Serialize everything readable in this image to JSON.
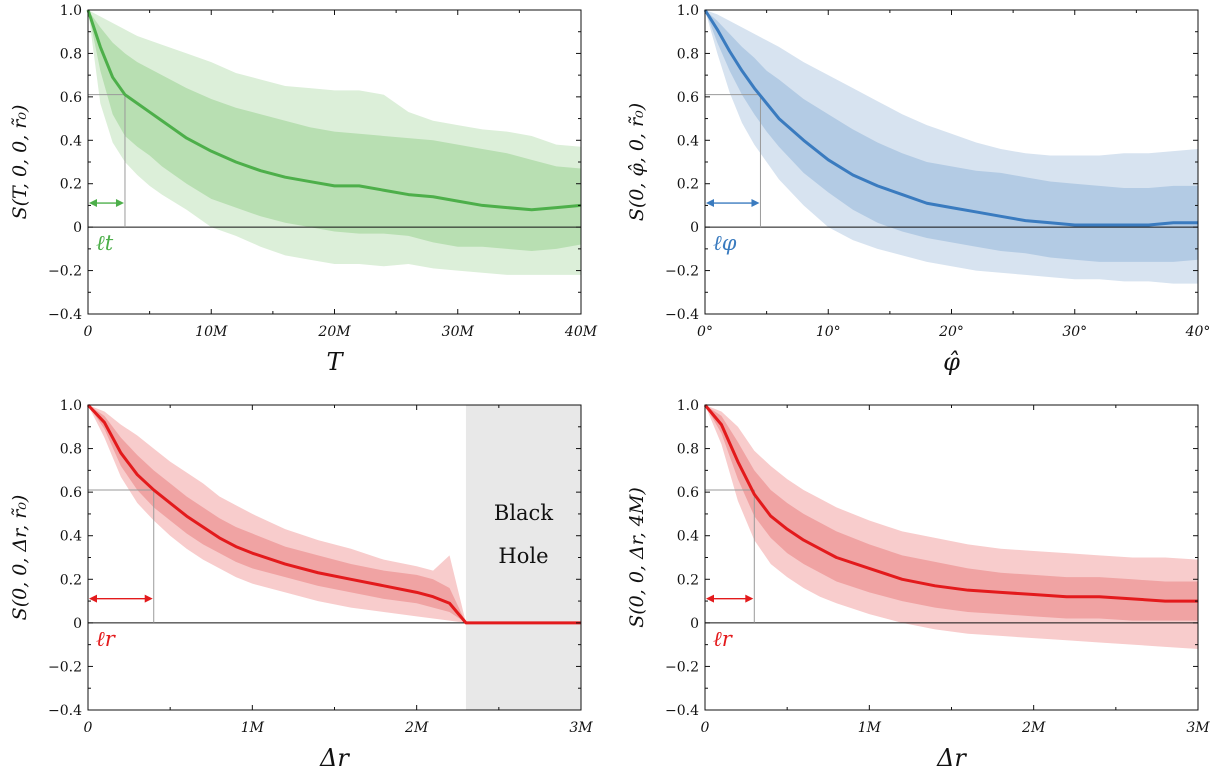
{
  "chart_data": [
    {
      "type": "area",
      "ylabel": "S(T, 0, 0, r̃₀)",
      "xlabel": "T",
      "xlim": [
        0,
        40
      ],
      "ylim": [
        -0.4,
        1.0
      ],
      "xticks": [
        0,
        10,
        20,
        30,
        40
      ],
      "xtick_labels": [
        "0",
        "10M",
        "20M",
        "30M",
        "40M"
      ],
      "yticks": [
        -0.4,
        -0.2,
        0,
        0.2,
        0.4,
        0.6,
        0.8,
        1.0
      ],
      "ytick_labels": [
        "−0.4",
        "−0.2",
        "0",
        "0.2",
        "0.4",
        "0.6",
        "0.8",
        "1.0"
      ],
      "color": "#4daf4a",
      "band_outer_color": "#dcefd9",
      "band_inner_color": "#b8dfb2",
      "annotation": "ℓt",
      "length_scale": 3.0,
      "length_value": 0.61,
      "x": [
        0,
        1,
        2,
        3,
        4,
        5,
        6,
        8,
        10,
        12,
        14,
        16,
        18,
        20,
        22,
        24,
        26,
        28,
        30,
        32,
        34,
        36,
        38,
        40
      ],
      "mean": [
        1.0,
        0.83,
        0.69,
        0.61,
        0.57,
        0.53,
        0.49,
        0.41,
        0.35,
        0.3,
        0.26,
        0.23,
        0.21,
        0.19,
        0.19,
        0.17,
        0.15,
        0.14,
        0.12,
        0.1,
        0.09,
        0.08,
        0.09,
        0.1
      ],
      "inner_upper": [
        1.0,
        0.92,
        0.85,
        0.8,
        0.76,
        0.73,
        0.7,
        0.64,
        0.59,
        0.55,
        0.52,
        0.49,
        0.46,
        0.44,
        0.43,
        0.42,
        0.41,
        0.4,
        0.38,
        0.36,
        0.34,
        0.31,
        0.28,
        0.27
      ],
      "inner_lower": [
        1.0,
        0.72,
        0.52,
        0.42,
        0.37,
        0.33,
        0.28,
        0.2,
        0.13,
        0.09,
        0.05,
        0.02,
        0.0,
        -0.02,
        -0.03,
        -0.03,
        -0.04,
        -0.07,
        -0.09,
        -0.09,
        -0.1,
        -0.11,
        -0.1,
        -0.08
      ],
      "outer_upper": [
        1.0,
        0.97,
        0.94,
        0.91,
        0.88,
        0.86,
        0.84,
        0.8,
        0.76,
        0.71,
        0.68,
        0.65,
        0.64,
        0.63,
        0.63,
        0.61,
        0.53,
        0.49,
        0.47,
        0.45,
        0.44,
        0.42,
        0.38,
        0.37
      ],
      "outer_lower": [
        1.0,
        0.57,
        0.39,
        0.3,
        0.24,
        0.19,
        0.15,
        0.08,
        0.0,
        -0.04,
        -0.09,
        -0.13,
        -0.15,
        -0.17,
        -0.17,
        -0.18,
        -0.17,
        -0.19,
        -0.2,
        -0.21,
        -0.22,
        -0.22,
        -0.22,
        -0.22
      ]
    },
    {
      "type": "area",
      "ylabel": "S(0, φ̂, 0, r̃₀)",
      "xlabel": "φ̂",
      "xlim": [
        0,
        40
      ],
      "ylim": [
        -0.4,
        1.0
      ],
      "xticks": [
        0,
        10,
        20,
        30,
        40
      ],
      "xtick_labels": [
        "0°",
        "10°",
        "20°",
        "30°",
        "40°"
      ],
      "yticks": [
        -0.4,
        -0.2,
        0,
        0.2,
        0.4,
        0.6,
        0.8,
        1.0
      ],
      "ytick_labels": [
        "−0.4",
        "−0.2",
        "0",
        "0.2",
        "0.4",
        "0.6",
        "0.8",
        "1.0"
      ],
      "color": "#3a7bbf",
      "band_outer_color": "#d7e3f0",
      "band_inner_color": "#b3cbe4",
      "annotation": "ℓφ",
      "length_scale": 4.5,
      "length_value": 0.61,
      "x": [
        0,
        1,
        2,
        3,
        4,
        5,
        6,
        8,
        10,
        12,
        14,
        16,
        18,
        20,
        22,
        24,
        26,
        28,
        30,
        32,
        34,
        36,
        38,
        40
      ],
      "mean": [
        1.0,
        0.91,
        0.81,
        0.72,
        0.64,
        0.57,
        0.5,
        0.4,
        0.31,
        0.24,
        0.19,
        0.15,
        0.11,
        0.09,
        0.07,
        0.05,
        0.03,
        0.02,
        0.01,
        0.01,
        0.01,
        0.01,
        0.02,
        0.02
      ],
      "inner_upper": [
        1.0,
        0.95,
        0.89,
        0.83,
        0.78,
        0.72,
        0.68,
        0.59,
        0.52,
        0.45,
        0.39,
        0.34,
        0.3,
        0.28,
        0.26,
        0.25,
        0.23,
        0.21,
        0.2,
        0.19,
        0.18,
        0.18,
        0.19,
        0.19
      ],
      "inner_lower": [
        1.0,
        0.85,
        0.72,
        0.61,
        0.52,
        0.44,
        0.37,
        0.25,
        0.16,
        0.08,
        0.02,
        -0.02,
        -0.05,
        -0.07,
        -0.09,
        -0.11,
        -0.12,
        -0.14,
        -0.15,
        -0.16,
        -0.16,
        -0.16,
        -0.16,
        -0.15
      ],
      "outer_upper": [
        1.0,
        0.98,
        0.95,
        0.92,
        0.89,
        0.86,
        0.83,
        0.76,
        0.7,
        0.64,
        0.58,
        0.52,
        0.47,
        0.43,
        0.39,
        0.36,
        0.34,
        0.33,
        0.33,
        0.33,
        0.34,
        0.34,
        0.35,
        0.36
      ],
      "outer_lower": [
        1.0,
        0.8,
        0.62,
        0.48,
        0.38,
        0.3,
        0.22,
        0.1,
        0.0,
        -0.06,
        -0.1,
        -0.13,
        -0.16,
        -0.18,
        -0.2,
        -0.21,
        -0.22,
        -0.23,
        -0.24,
        -0.24,
        -0.25,
        -0.25,
        -0.26,
        -0.26
      ]
    },
    {
      "type": "area",
      "ylabel": "S(0, 0, Δr, r̃₀)",
      "xlabel": "Δr",
      "xlim": [
        0,
        3
      ],
      "ylim": [
        -0.4,
        1.0
      ],
      "xticks": [
        0,
        1,
        2,
        3
      ],
      "xtick_labels": [
        "0",
        "1M",
        "2M",
        "3M"
      ],
      "yticks": [
        -0.4,
        -0.2,
        0,
        0.2,
        0.4,
        0.6,
        0.8,
        1.0
      ],
      "ytick_labels": [
        "−0.4",
        "−0.2",
        "0",
        "0.2",
        "0.4",
        "0.6",
        "0.8",
        "1.0"
      ],
      "color": "#e31a1c",
      "band_outer_color": "#f8cccc",
      "band_inner_color": "#f0a3a3",
      "annotation": "ℓr",
      "length_scale": 0.4,
      "length_value": 0.61,
      "black_hole": {
        "x_start": 2.3,
        "x_end": 3.0,
        "label_line1": "Black",
        "label_line2": "Hole",
        "fill": "#e8e8e8"
      },
      "x": [
        0,
        0.1,
        0.2,
        0.3,
        0.4,
        0.5,
        0.6,
        0.7,
        0.8,
        0.9,
        1.0,
        1.2,
        1.4,
        1.6,
        1.8,
        2.0,
        2.1,
        2.2,
        2.3,
        2.4,
        2.6,
        2.8,
        3.0
      ],
      "mean": [
        1.0,
        0.92,
        0.78,
        0.68,
        0.61,
        0.55,
        0.49,
        0.44,
        0.39,
        0.35,
        0.32,
        0.27,
        0.23,
        0.2,
        0.17,
        0.14,
        0.12,
        0.09,
        0.0,
        0.0,
        0.0,
        0.0,
        0.0
      ],
      "inner_upper": [
        1.0,
        0.95,
        0.85,
        0.77,
        0.7,
        0.64,
        0.58,
        0.53,
        0.48,
        0.44,
        0.41,
        0.35,
        0.31,
        0.27,
        0.24,
        0.22,
        0.2,
        0.16,
        0.0,
        0.0,
        0.0,
        0.0,
        0.0
      ],
      "inner_lower": [
        1.0,
        0.89,
        0.72,
        0.61,
        0.53,
        0.47,
        0.41,
        0.36,
        0.32,
        0.28,
        0.25,
        0.21,
        0.17,
        0.14,
        0.11,
        0.09,
        0.07,
        0.05,
        0.0,
        0.0,
        0.0,
        0.0,
        0.0
      ],
      "outer_upper": [
        1.0,
        0.97,
        0.91,
        0.86,
        0.8,
        0.74,
        0.69,
        0.64,
        0.58,
        0.54,
        0.5,
        0.43,
        0.38,
        0.34,
        0.29,
        0.26,
        0.24,
        0.31,
        0.0,
        0.0,
        0.0,
        0.0,
        0.0
      ],
      "outer_lower": [
        1.0,
        0.85,
        0.67,
        0.55,
        0.47,
        0.4,
        0.34,
        0.29,
        0.25,
        0.21,
        0.18,
        0.14,
        0.1,
        0.07,
        0.05,
        0.03,
        0.02,
        0.01,
        0.0,
        0.0,
        0.0,
        0.0,
        0.0
      ]
    },
    {
      "type": "area",
      "ylabel": "S(0, 0, Δr, 4M)",
      "xlabel": "Δr",
      "xlim": [
        0,
        3
      ],
      "ylim": [
        -0.4,
        1.0
      ],
      "xticks": [
        0,
        1,
        2,
        3
      ],
      "xtick_labels": [
        "0",
        "1M",
        "2M",
        "3M"
      ],
      "yticks": [
        -0.4,
        -0.2,
        0,
        0.2,
        0.4,
        0.6,
        0.8,
        1.0
      ],
      "ytick_labels": [
        "−0.4",
        "−0.2",
        "0",
        "0.2",
        "0.4",
        "0.6",
        "0.8",
        "1.0"
      ],
      "color": "#e31a1c",
      "band_outer_color": "#f8cccc",
      "band_inner_color": "#f0a3a3",
      "annotation": "ℓr",
      "length_scale": 0.3,
      "length_value": 0.61,
      "x": [
        0,
        0.1,
        0.2,
        0.3,
        0.4,
        0.5,
        0.6,
        0.7,
        0.8,
        1.0,
        1.2,
        1.4,
        1.6,
        1.8,
        2.0,
        2.2,
        2.4,
        2.6,
        2.8,
        3.0
      ],
      "mean": [
        1.0,
        0.91,
        0.74,
        0.59,
        0.49,
        0.43,
        0.38,
        0.34,
        0.3,
        0.25,
        0.2,
        0.17,
        0.15,
        0.14,
        0.13,
        0.12,
        0.12,
        0.11,
        0.1,
        0.1
      ],
      "inner_upper": [
        1.0,
        0.95,
        0.83,
        0.7,
        0.61,
        0.55,
        0.5,
        0.46,
        0.42,
        0.36,
        0.31,
        0.28,
        0.25,
        0.23,
        0.22,
        0.21,
        0.21,
        0.2,
        0.19,
        0.19
      ],
      "inner_lower": [
        1.0,
        0.87,
        0.66,
        0.49,
        0.39,
        0.32,
        0.27,
        0.23,
        0.19,
        0.14,
        0.1,
        0.07,
        0.05,
        0.04,
        0.03,
        0.02,
        0.02,
        0.01,
        0.01,
        0.01
      ],
      "outer_upper": [
        1.0,
        0.97,
        0.9,
        0.79,
        0.72,
        0.66,
        0.61,
        0.57,
        0.53,
        0.47,
        0.42,
        0.39,
        0.36,
        0.34,
        0.33,
        0.32,
        0.31,
        0.3,
        0.3,
        0.29
      ],
      "outer_lower": [
        1.0,
        0.82,
        0.56,
        0.38,
        0.27,
        0.21,
        0.16,
        0.12,
        0.09,
        0.04,
        0.0,
        -0.03,
        -0.05,
        -0.06,
        -0.07,
        -0.08,
        -0.09,
        -0.1,
        -0.11,
        -0.12
      ]
    }
  ]
}
